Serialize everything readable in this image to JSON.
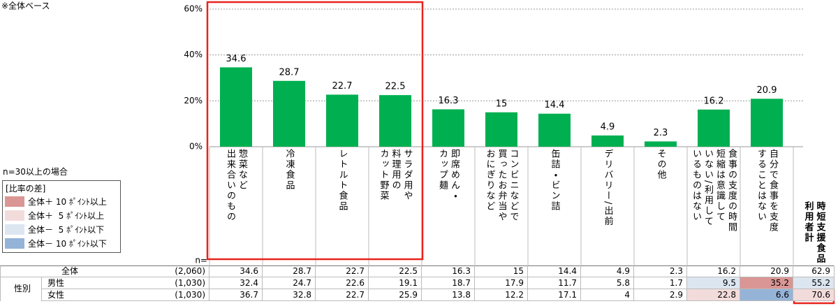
{
  "note": "※全体ベース",
  "chart_data": {
    "type": "bar",
    "categories": [
      "惣菜など\n出来合いのもの",
      "冷凍食品",
      "レトルト食品",
      "サラダ用や\n料理用の\nカット野菜",
      "即席めん・\nカップ麺",
      "コンビニなどで\n買ったお弁当や\nおにぎりなど",
      "缶詰・ビン詰",
      "デリバリー/出前",
      "その他",
      "食事の支度の時間\n短縮は意識して\nいない/利用して\nいるものはない",
      "自分で食事を支度\nすることはない"
    ],
    "values": [
      34.6,
      28.7,
      22.7,
      22.5,
      16.3,
      15.0,
      14.4,
      4.9,
      2.3,
      16.2,
      20.9
    ],
    "color": "#00b050",
    "ylim": [
      0,
      60
    ],
    "yticks": [
      {
        "value": 0,
        "label": "0%"
      },
      {
        "value": 20,
        "label": "20%"
      },
      {
        "value": 40,
        "label": "40%"
      },
      {
        "value": 60,
        "label": "60%"
      }
    ],
    "grid": true
  },
  "legend": {
    "title": "n=30以上の場合",
    "heading": "[比率の差]",
    "items": [
      {
        "label": "全体＋ 10 ﾎﾟｲﾝﾄ以上",
        "color": "#da9694"
      },
      {
        "label": "全体＋  5 ﾎﾟｲﾝﾄ以上",
        "color": "#f2dcdb"
      },
      {
        "label": "全体－  5 ﾎﾟｲﾝﾄ以下",
        "color": "#dce6f1"
      },
      {
        "label": "全体－ 10 ﾎﾟｲﾝﾄ以下",
        "color": "#95b3d7"
      }
    ]
  },
  "table": {
    "n_label": "n=",
    "extra_column": "時短支援食品\n利用者計",
    "group_label": "性別",
    "rows": [
      {
        "label": "全体",
        "n": "(2,060)",
        "values": [
          34.6,
          28.7,
          22.7,
          22.5,
          16.3,
          15.0,
          14.4,
          4.9,
          2.3,
          16.2,
          20.9,
          62.9
        ],
        "highlights": [
          null,
          null,
          null,
          null,
          null,
          null,
          null,
          null,
          null,
          null,
          null,
          null
        ]
      },
      {
        "label": "男性",
        "n": "(1,030)",
        "values": [
          32.4,
          24.7,
          22.6,
          19.1,
          18.7,
          17.9,
          11.7,
          5.8,
          1.7,
          9.5,
          35.2,
          55.2
        ],
        "highlights": [
          null,
          null,
          null,
          null,
          null,
          null,
          null,
          null,
          null,
          "#dce6f1",
          "#da9694",
          "#dce6f1"
        ]
      },
      {
        "label": "女性",
        "n": "(1,030)",
        "values": [
          36.7,
          32.8,
          22.7,
          25.9,
          13.8,
          12.2,
          17.1,
          4.0,
          2.9,
          22.8,
          6.6,
          70.6
        ],
        "highlights": [
          null,
          null,
          null,
          null,
          null,
          null,
          null,
          null,
          null,
          "#f2dcdb",
          "#95b3d7",
          "#f2dcdb"
        ]
      }
    ]
  }
}
